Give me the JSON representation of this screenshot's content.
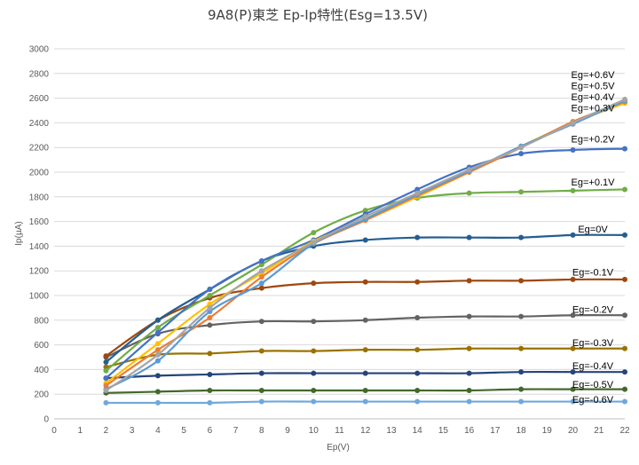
{
  "chart_data": {
    "type": "line",
    "title": "9A8(P)東芝 Ep-Ip特性(Esg=13.5V)",
    "xlabel": "Ep(V)",
    "ylabel": "Ip(µA)",
    "xlim": [
      0,
      22
    ],
    "ylim": [
      0,
      3000
    ],
    "x_ticks": [
      0,
      1,
      2,
      3,
      4,
      5,
      6,
      7,
      8,
      9,
      10,
      11,
      12,
      13,
      14,
      15,
      16,
      17,
      18,
      19,
      20,
      21,
      22
    ],
    "y_ticks": [
      0,
      200,
      400,
      600,
      800,
      1000,
      1200,
      1400,
      1600,
      1800,
      2000,
      2200,
      2400,
      2600,
      2800,
      3000
    ],
    "grid": "horizontal",
    "x": [
      2,
      4,
      6,
      8,
      10,
      12,
      14,
      16,
      18,
      20,
      22
    ],
    "series": [
      {
        "name": "Eg=+0.6V",
        "color": "#a5a5a5",
        "values": [
          230,
          520,
          900,
          1200,
          1430,
          1640,
          1830,
          2020,
          2200,
          2400,
          2590
        ]
      },
      {
        "name": "Eg=+0.5V",
        "color": "#5b9bd5",
        "values": [
          240,
          470,
          870,
          1100,
          1420,
          1620,
          1820,
          2010,
          2210,
          2390,
          2580
        ]
      },
      {
        "name": "Eg=+0.4V",
        "color": "#ed7d31",
        "values": [
          270,
          560,
          820,
          1150,
          1420,
          1610,
          1810,
          2000,
          2200,
          2410,
          2570
        ]
      },
      {
        "name": "Eg=+0.3V",
        "color": "#ffc000",
        "values": [
          290,
          610,
          930,
          1180,
          1440,
          1610,
          1800,
          2000,
          2210,
          2400,
          2560
        ]
      },
      {
        "name": "Eg=+0.2V",
        "color": "#4472c4",
        "values": [
          330,
          700,
          1050,
          1280,
          1450,
          1660,
          1860,
          2040,
          2150,
          2180,
          2190
        ]
      },
      {
        "name": "Eg=+0.1V",
        "color": "#70ad47",
        "values": [
          390,
          740,
          1000,
          1250,
          1510,
          1690,
          1790,
          1830,
          1840,
          1850,
          1860
        ]
      },
      {
        "name": "Eg=0V",
        "color": "#255e91",
        "values": [
          460,
          800,
          1050,
          1280,
          1400,
          1450,
          1470,
          1470,
          1470,
          1490,
          1490
        ]
      },
      {
        "name": "Eg=-0.1V",
        "color": "#9e480e",
        "values": [
          510,
          800,
          980,
          1060,
          1100,
          1110,
          1110,
          1120,
          1120,
          1130,
          1130
        ]
      },
      {
        "name": "Eg=-0.2V",
        "color": "#636363",
        "values": [
          500,
          690,
          760,
          790,
          790,
          800,
          820,
          830,
          830,
          840,
          840
        ]
      },
      {
        "name": "Eg=-0.3V",
        "color": "#997300",
        "values": [
          420,
          520,
          530,
          550,
          550,
          560,
          560,
          570,
          570,
          570,
          570
        ]
      },
      {
        "name": "Eg=-0.4V",
        "color": "#264478",
        "values": [
          330,
          350,
          360,
          370,
          370,
          370,
          370,
          370,
          380,
          380,
          380
        ]
      },
      {
        "name": "Eg=-0.5V",
        "color": "#43682b",
        "values": [
          210,
          220,
          230,
          230,
          230,
          230,
          230,
          230,
          240,
          240,
          240
        ]
      },
      {
        "name": "Eg=-0.6V",
        "color": "#6fa8dc",
        "values": [
          130,
          130,
          130,
          140,
          140,
          140,
          140,
          140,
          140,
          140,
          140
        ]
      }
    ],
    "annotations": [
      "Eg=+0.6V",
      "Eg=+0.5V",
      "Eg=+0.4V",
      "Eg=+0.3V",
      "Eg=+0.2V",
      "Eg=+0.1V",
      "Eg=0V",
      "Eg=-0.1V",
      "Eg=-0.2V",
      "Eg=-0.3V",
      "Eg=-0.4V",
      "Eg=-0.5V",
      "Eg=-0.6V"
    ]
  }
}
